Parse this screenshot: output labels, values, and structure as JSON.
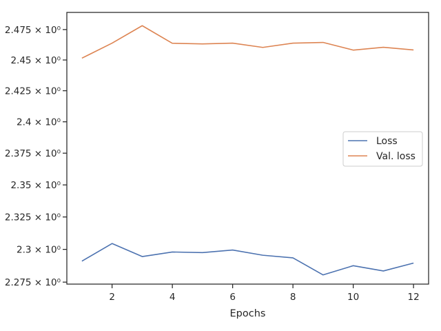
{
  "chart_data": {
    "type": "line",
    "title": "",
    "xlabel": "Epochs",
    "ylabel": "",
    "y_scale": "log",
    "grid": false,
    "legend_position": "center-right",
    "x": [
      1,
      2,
      3,
      4,
      5,
      6,
      7,
      8,
      9,
      10,
      11,
      12
    ],
    "xlim": [
      0.5,
      12.5
    ],
    "ylim": [
      2.2735,
      2.4892
    ],
    "x_ticks": [
      {
        "value": 2,
        "label": "2"
      },
      {
        "value": 4,
        "label": "4"
      },
      {
        "value": 6,
        "label": "6"
      },
      {
        "value": 8,
        "label": "8"
      },
      {
        "value": 10,
        "label": "10"
      },
      {
        "value": 12,
        "label": "12"
      }
    ],
    "y_ticks": [
      {
        "value": 2.275,
        "label": "2.275 × 10⁰"
      },
      {
        "value": 2.3,
        "label": "2.3 × 10⁰"
      },
      {
        "value": 2.325,
        "label": "2.325 × 10⁰"
      },
      {
        "value": 2.35,
        "label": "2.35 × 10⁰"
      },
      {
        "value": 2.375,
        "label": "2.375 × 10⁰"
      },
      {
        "value": 2.4,
        "label": "2.4 × 10⁰"
      },
      {
        "value": 2.425,
        "label": "2.425 × 10⁰"
      },
      {
        "value": 2.45,
        "label": "2.45 × 10⁰"
      },
      {
        "value": 2.475,
        "label": "2.475 × 10⁰"
      }
    ],
    "series": [
      {
        "name": "Loss",
        "color": "#4c72b0",
        "values": [
          2.291,
          2.3045,
          2.2945,
          2.298,
          2.2975,
          2.2995,
          2.2955,
          2.2935,
          2.2805,
          2.2875,
          2.2835,
          2.2895
        ]
      },
      {
        "name": "Val. loss",
        "color": "#dd8452",
        "values": [
          2.4515,
          2.4638,
          2.4782,
          2.4637,
          2.4632,
          2.4638,
          2.4603,
          2.4638,
          2.4644,
          2.4581,
          2.4604,
          2.4582
        ]
      }
    ]
  }
}
